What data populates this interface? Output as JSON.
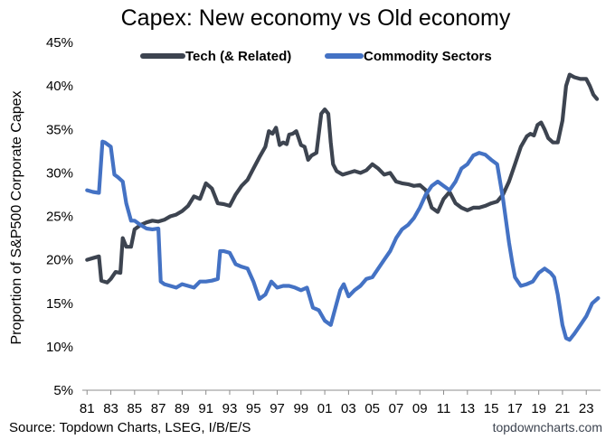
{
  "chart_data": {
    "type": "line",
    "title": "Capex: New economy vs Old economy",
    "ylabel": "Proportion of S&P500 Corporate Capex",
    "xlabel": "",
    "ylim": [
      5,
      45
    ],
    "xlim": [
      1980.6,
      2024.2
    ],
    "y_ticks": [
      "5%",
      "10%",
      "15%",
      "20%",
      "25%",
      "30%",
      "35%",
      "40%",
      "45%"
    ],
    "y_tick_values": [
      5,
      10,
      15,
      20,
      25,
      30,
      35,
      40,
      45
    ],
    "x_ticks": [
      "81",
      "83",
      "85",
      "87",
      "89",
      "91",
      "93",
      "95",
      "97",
      "99",
      "01",
      "03",
      "05",
      "07",
      "09",
      "11",
      "13",
      "15",
      "17",
      "19",
      "21",
      "23"
    ],
    "x_tick_values": [
      1981,
      1983,
      1985,
      1987,
      1989,
      1991,
      1993,
      1995,
      1997,
      1999,
      2001,
      2003,
      2005,
      2007,
      2009,
      2011,
      2013,
      2015,
      2017,
      2019,
      2021,
      2023
    ],
    "grid": false,
    "legend_position": "top",
    "source": "Source: Topdown Charts, LSEG, I/B/E/S",
    "watermark": "topdowncharts.com",
    "series": [
      {
        "name": "Tech (& Related)",
        "color": "#3d4450",
        "x": [
          1981.0,
          1981.5,
          1982.0,
          1982.2,
          1982.7,
          1983.0,
          1983.4,
          1983.8,
          1984.0,
          1984.3,
          1984.7,
          1985.0,
          1985.5,
          1986.0,
          1986.5,
          1987.0,
          1987.5,
          1988.0,
          1988.5,
          1989.0,
          1989.5,
          1990.0,
          1990.5,
          1991.0,
          1991.5,
          1992.0,
          1992.5,
          1993.0,
          1993.5,
          1994.0,
          1994.5,
          1995.0,
          1995.5,
          1996.0,
          1996.3,
          1996.6,
          1996.9,
          1997.2,
          1997.5,
          1997.8,
          1998.0,
          1998.3,
          1998.6,
          1999.0,
          1999.3,
          1999.6,
          1999.9,
          2000.3,
          2000.7,
          2001.0,
          2001.3,
          2001.5,
          2001.7,
          2002.0,
          2002.5,
          2003.0,
          2003.5,
          2004.0,
          2004.5,
          2005.0,
          2005.5,
          2006.0,
          2006.5,
          2007.0,
          2007.5,
          2008.0,
          2008.5,
          2009.0,
          2009.5,
          2010.0,
          2010.5,
          2011.0,
          2011.5,
          2012.0,
          2012.5,
          2013.0,
          2013.5,
          2014.0,
          2014.5,
          2015.0,
          2015.5,
          2016.0,
          2016.5,
          2017.0,
          2017.5,
          2018.0,
          2018.3,
          2018.6,
          2018.9,
          2019.2,
          2019.5,
          2019.8,
          2020.2,
          2020.6,
          2021.0,
          2021.3,
          2021.6,
          2022.0,
          2022.5,
          2023.0,
          2023.3,
          2023.6,
          2023.9
        ],
        "values": [
          20.0,
          20.2,
          20.4,
          17.6,
          17.4,
          17.8,
          18.6,
          18.5,
          22.5,
          21.5,
          21.5,
          23.5,
          24.0,
          24.3,
          24.5,
          24.4,
          24.6,
          25.0,
          25.2,
          25.6,
          26.2,
          27.3,
          27.0,
          28.8,
          28.2,
          26.5,
          26.4,
          26.2,
          27.5,
          28.5,
          29.2,
          30.5,
          31.8,
          33.0,
          34.8,
          34.5,
          35.2,
          33.2,
          33.5,
          33.3,
          34.4,
          34.5,
          34.8,
          33.2,
          33.0,
          31.5,
          32.0,
          32.3,
          36.8,
          37.3,
          36.8,
          33.5,
          31.0,
          30.2,
          29.8,
          30.0,
          30.2,
          30.0,
          30.3,
          31.0,
          30.5,
          29.8,
          30.0,
          29.0,
          28.8,
          28.7,
          28.5,
          28.6,
          28.0,
          26.0,
          25.5,
          27.0,
          27.8,
          26.5,
          26.0,
          25.7,
          26.0,
          26.0,
          26.2,
          26.5,
          26.7,
          27.5,
          29.0,
          31.0,
          33.0,
          34.2,
          34.5,
          34.3,
          35.5,
          35.8,
          35.0,
          34.0,
          33.5,
          33.5,
          36.0,
          40.0,
          41.3,
          41.0,
          40.8,
          40.8,
          40.0,
          39.0,
          38.5
        ]
      },
      {
        "name": "Commodity Sectors",
        "color": "#4472c4",
        "x": [
          1981.0,
          1981.5,
          1982.0,
          1982.3,
          1982.5,
          1983.0,
          1983.3,
          1983.6,
          1984.0,
          1984.3,
          1984.7,
          1985.0,
          1985.5,
          1986.0,
          1986.5,
          1987.0,
          1987.2,
          1987.5,
          1988.0,
          1988.5,
          1989.0,
          1989.5,
          1990.0,
          1990.5,
          1991.0,
          1991.5,
          1992.0,
          1992.2,
          1992.5,
          1993.0,
          1993.5,
          1994.0,
          1994.5,
          1995.0,
          1995.5,
          1996.0,
          1996.5,
          1997.0,
          1997.5,
          1998.0,
          1998.5,
          1999.0,
          1999.5,
          2000.0,
          2000.5,
          2001.0,
          2001.5,
          2002.0,
          2002.3,
          2002.6,
          2003.0,
          2003.5,
          2004.0,
          2004.5,
          2005.0,
          2005.5,
          2006.0,
          2006.5,
          2007.0,
          2007.5,
          2008.0,
          2008.5,
          2009.0,
          2009.5,
          2010.0,
          2010.5,
          2011.0,
          2011.5,
          2012.0,
          2012.5,
          2013.0,
          2013.5,
          2014.0,
          2014.5,
          2015.0,
          2015.5,
          2016.0,
          2016.5,
          2016.8,
          2017.0,
          2017.5,
          2018.0,
          2018.5,
          2019.0,
          2019.5,
          2020.0,
          2020.3,
          2020.6,
          2021.0,
          2021.3,
          2021.6,
          2022.0,
          2022.5,
          2023.0,
          2023.5,
          2024.0
        ],
        "values": [
          28.0,
          27.8,
          27.7,
          33.6,
          33.5,
          33.0,
          29.8,
          29.5,
          29.0,
          26.5,
          24.5,
          24.5,
          24.0,
          23.6,
          23.5,
          23.6,
          17.5,
          17.2,
          17.0,
          16.8,
          17.2,
          17.0,
          16.8,
          17.5,
          17.5,
          17.6,
          17.8,
          21.0,
          21.0,
          20.8,
          19.5,
          19.2,
          19.0,
          17.5,
          15.5,
          16.0,
          17.5,
          16.8,
          17.0,
          17.0,
          16.8,
          16.5,
          16.8,
          14.5,
          14.2,
          13.0,
          12.5,
          15.0,
          16.5,
          17.2,
          15.8,
          16.5,
          17.0,
          17.8,
          18.0,
          19.0,
          20.0,
          21.0,
          22.5,
          23.5,
          24.0,
          24.8,
          26.0,
          27.5,
          28.5,
          29.0,
          28.5,
          28.0,
          29.0,
          30.5,
          31.0,
          32.0,
          32.3,
          32.1,
          31.5,
          31.0,
          27.0,
          22.0,
          19.5,
          18.0,
          17.0,
          17.2,
          17.5,
          18.5,
          19.0,
          18.5,
          18.0,
          16.0,
          12.5,
          11.0,
          10.8,
          11.5,
          12.5,
          13.5,
          15.0,
          15.6
        ]
      }
    ]
  }
}
